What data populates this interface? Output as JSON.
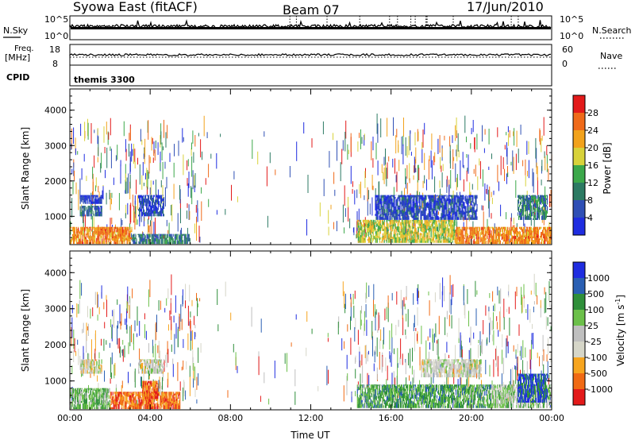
{
  "header": {
    "station": "Syowa East (fitACF)",
    "beam": "Beam 07",
    "date": "17/Jun/2010"
  },
  "params_panels": {
    "nsky": {
      "label": "N.Sky",
      "ticks": [
        "10^5",
        "10^0"
      ]
    },
    "nsearch": {
      "label": "N.Search",
      "ticks": [
        "10^5",
        "10^0"
      ]
    },
    "freq": {
      "label_line1": "Freq.",
      "label_line2": "[MHz]",
      "ticks": [
        "18",
        "8"
      ]
    },
    "nave": {
      "label": "Nave",
      "ticks": [
        "60",
        "0"
      ]
    },
    "cpid": {
      "label": "CPID",
      "value": "themis 3300"
    }
  },
  "colors": {
    "power_scale": [
      "#1f2de0",
      "#2f4fb5",
      "#2c7a63",
      "#3ca84a",
      "#d8d23a",
      "#f2a21c",
      "#ef6a1a",
      "#e31a1a"
    ],
    "velocity_scale": [
      "#e31a1a",
      "#f06a14",
      "#f7a51f",
      "#d6d6c8",
      "#bfbfbf",
      "#6cc04a",
      "#2f8f3a",
      "#2a5fb3",
      "#1f2de0"
    ]
  },
  "chart_data": [
    {
      "type": "heatmap",
      "title": "Power",
      "ylabel": "Slant Range [km]",
      "xlabel": "",
      "x_ticks": [
        "00:00",
        "04:00",
        "08:00",
        "12:00",
        "16:00",
        "20:00",
        "00:00"
      ],
      "y_ticks": [
        "1000",
        "2000",
        "3000",
        "4000"
      ],
      "ylim": [
        200,
        4600
      ],
      "xlim": [
        "00:00",
        "24:00"
      ],
      "colorbar": {
        "label": "Power [dB]",
        "ticks": [
          "4",
          "8",
          "12",
          "16",
          "20",
          "24",
          "28"
        ],
        "range": [
          0,
          30
        ]
      },
      "regions": [
        {
          "t0": 0.0,
          "t1": 3.1,
          "r0": 220,
          "r1": 700,
          "level": 0.75
        },
        {
          "t0": 0.5,
          "t1": 1.6,
          "r0": 1000,
          "r1": 1300,
          "level": 0.25
        },
        {
          "t0": 0.5,
          "t1": 1.6,
          "r0": 1350,
          "r1": 1600,
          "level": 0.1
        },
        {
          "t0": 3.4,
          "t1": 4.7,
          "r0": 1000,
          "r1": 1600,
          "level": 0.15
        },
        {
          "t0": 3.1,
          "t1": 6.0,
          "r0": 220,
          "r1": 500,
          "level": 0.3
        },
        {
          "t0": 14.3,
          "t1": 19.2,
          "r0": 250,
          "r1": 900,
          "level": 0.55
        },
        {
          "t0": 15.2,
          "t1": 20.3,
          "r0": 900,
          "r1": 1600,
          "level": 0.15
        },
        {
          "t0": 19.2,
          "t1": 24.0,
          "r0": 220,
          "r1": 700,
          "level": 0.75
        },
        {
          "t0": 22.3,
          "t1": 23.8,
          "r0": 900,
          "r1": 1600,
          "level": 0.3
        }
      ]
    },
    {
      "type": "heatmap",
      "title": "Velocity",
      "ylabel": "Slant Range [km]",
      "xlabel": "Time UT",
      "x_ticks": [
        "00:00",
        "04:00",
        "08:00",
        "12:00",
        "16:00",
        "20:00",
        "00:00"
      ],
      "y_ticks": [
        "1000",
        "2000",
        "3000",
        "4000"
      ],
      "ylim": [
        200,
        4600
      ],
      "xlim": [
        "00:00",
        "24:00"
      ],
      "colorbar": {
        "label": "Velocity [m s^-1]",
        "ticks": [
          "1000",
          "500",
          "100",
          "25",
          "-25",
          "-100",
          "-500",
          "-1000"
        ],
        "range": [
          -1200,
          1200
        ]
      },
      "regions": [
        {
          "t0": 0.0,
          "t1": 2.0,
          "r0": 220,
          "r1": 800,
          "level": 0.62
        },
        {
          "t0": 2.0,
          "t1": 5.5,
          "r0": 220,
          "r1": 700,
          "level": 0.18
        },
        {
          "t0": 0.5,
          "t1": 1.6,
          "r0": 1200,
          "r1": 1600,
          "level": 0.45
        },
        {
          "t0": 3.4,
          "t1": 4.7,
          "r0": 1200,
          "r1": 1600,
          "level": 0.45
        },
        {
          "t0": 3.6,
          "t1": 4.4,
          "r0": 500,
          "r1": 1000,
          "level": 0.15
        },
        {
          "t0": 14.3,
          "t1": 21.0,
          "r0": 250,
          "r1": 900,
          "level": 0.68
        },
        {
          "t0": 17.5,
          "t1": 20.5,
          "r0": 1100,
          "r1": 1600,
          "level": 0.45
        },
        {
          "t0": 21.0,
          "t1": 24.0,
          "r0": 250,
          "r1": 900,
          "level": 0.55
        },
        {
          "t0": 22.3,
          "t1": 23.8,
          "r0": 400,
          "r1": 1200,
          "level": 0.85
        }
      ]
    }
  ]
}
